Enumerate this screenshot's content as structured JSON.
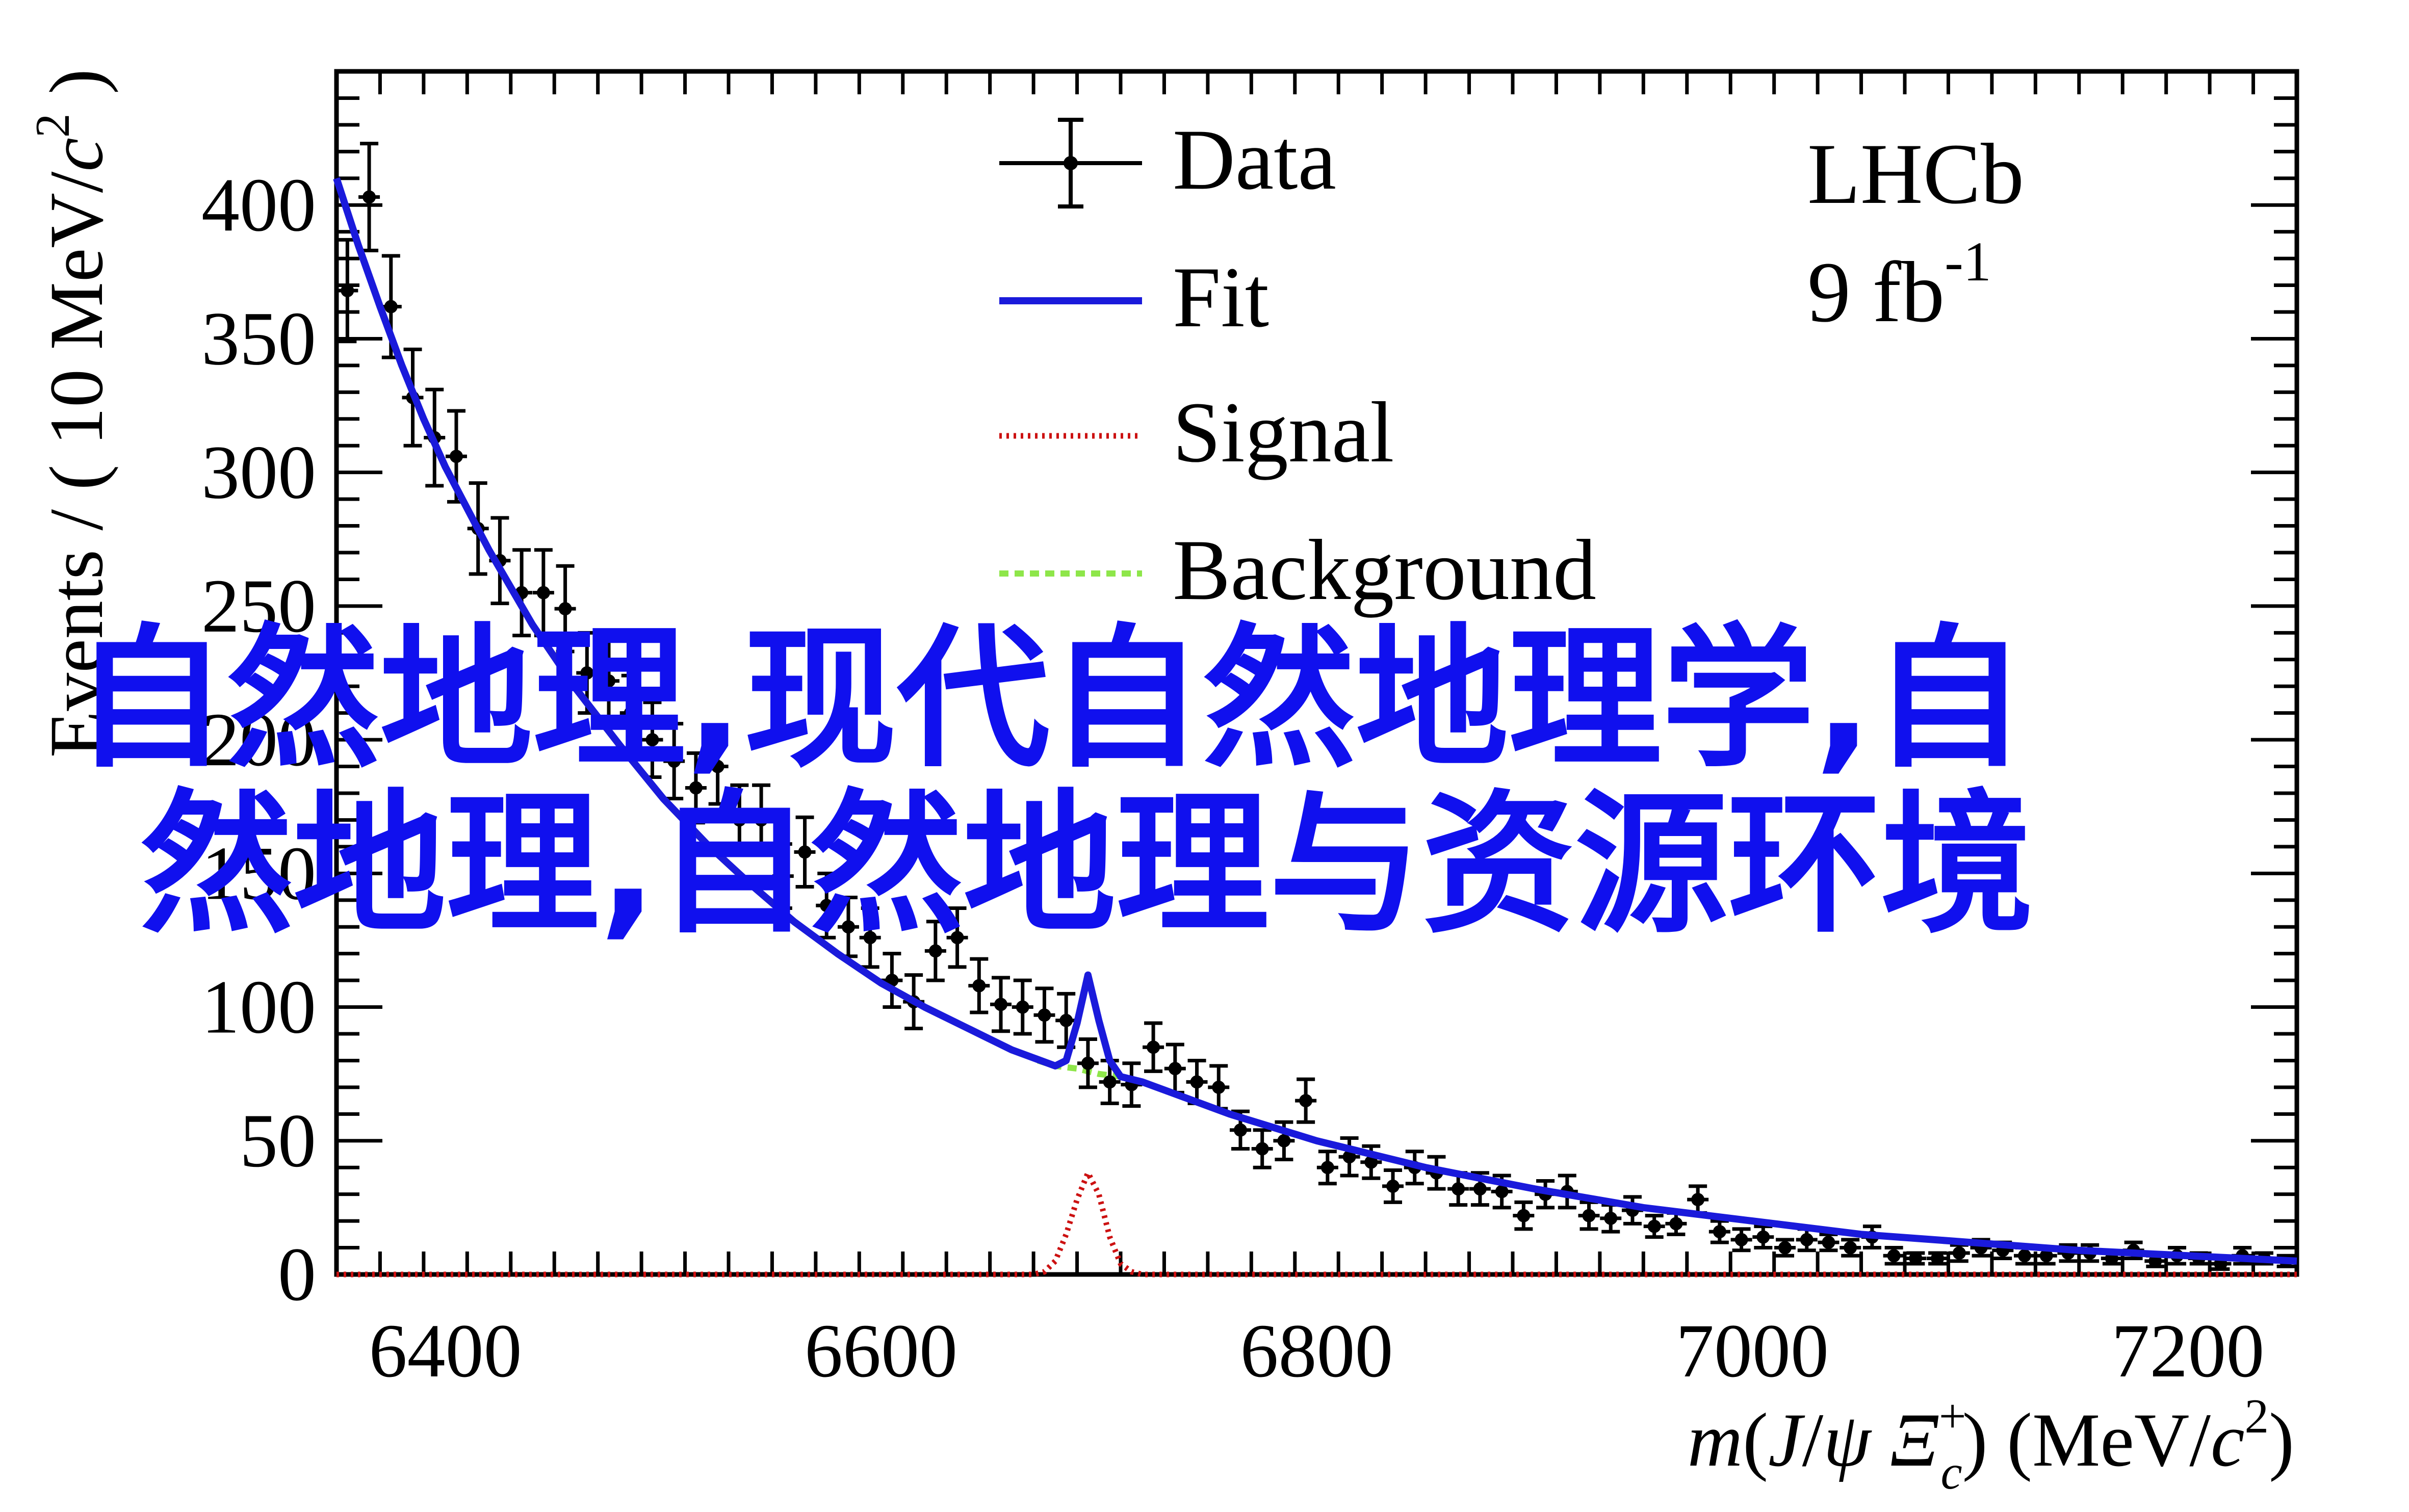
{
  "chart_data": {
    "type": "scatter",
    "xlabel": "m(J/ψ Ξc+) (MeV/c²)",
    "ylabel": "Events / ( 10 MeV/c² )",
    "xlim": [
      6350,
      7250
    ],
    "ylim": [
      0,
      450
    ],
    "x_ticks": [
      6400,
      6600,
      6800,
      7000,
      7200
    ],
    "y_ticks": [
      0,
      50,
      100,
      150,
      200,
      250,
      300,
      350,
      400
    ],
    "grid": false,
    "legend_placement": "top-center",
    "legend": [
      "Data",
      "Fit",
      "Signal",
      "Background"
    ],
    "annotations": [
      "LHCb",
      "9 fb-1"
    ],
    "series": [
      {
        "name": "Data",
        "kind": "points-with-errorbars",
        "color": "#000000",
        "x": [
          6355,
          6365,
          6375,
          6385,
          6395,
          6405,
          6415,
          6425,
          6435,
          6445,
          6455,
          6465,
          6475,
          6485,
          6495,
          6505,
          6515,
          6525,
          6535,
          6545,
          6555,
          6565,
          6575,
          6585,
          6595,
          6605,
          6615,
          6625,
          6635,
          6645,
          6655,
          6665,
          6675,
          6685,
          6695,
          6705,
          6715,
          6725,
          6735,
          6745,
          6755,
          6765,
          6775,
          6785,
          6795,
          6805,
          6815,
          6825,
          6835,
          6845,
          6855,
          6865,
          6875,
          6885,
          6895,
          6905,
          6915,
          6925,
          6935,
          6945,
          6955,
          6965,
          6975,
          6985,
          6995,
          7005,
          7015,
          7025,
          7035,
          7045,
          7055,
          7065,
          7075,
          7085,
          7095,
          7105,
          7115,
          7125,
          7135,
          7145,
          7155,
          7165,
          7175,
          7185,
          7195,
          7205,
          7215,
          7225,
          7235,
          7245
        ],
        "y": [
          368,
          403,
          362,
          328,
          313,
          306,
          279,
          267,
          255,
          255,
          249,
          225,
          222,
          210,
          200,
          192,
          182,
          190,
          170,
          170,
          149,
          158,
          138,
          130,
          126,
          110,
          102,
          121,
          126,
          108,
          101,
          100,
          97,
          95,
          79,
          72,
          71,
          85,
          77,
          72,
          70,
          54,
          47,
          50,
          65,
          40,
          44,
          42,
          33,
          40,
          38,
          32,
          32,
          31,
          22,
          30,
          31,
          22,
          21,
          24,
          18,
          19,
          28,
          16,
          13,
          14,
          10,
          13,
          12,
          10,
          14,
          7,
          6,
          6,
          8,
          10,
          9,
          7,
          7,
          8,
          8,
          6,
          9,
          5,
          7,
          6,
          4,
          7,
          6,
          5
        ],
        "yerr": [
          19,
          20,
          19,
          18,
          18,
          17,
          17,
          16,
          16,
          16,
          16,
          15,
          15,
          14,
          14,
          14,
          13,
          14,
          13,
          13,
          12,
          13,
          12,
          11,
          11,
          10,
          10,
          11,
          11,
          10,
          10,
          10,
          10,
          10,
          9,
          8,
          8,
          9,
          9,
          8,
          8,
          7,
          7,
          7,
          8,
          6,
          7,
          6,
          6,
          6,
          6,
          6,
          6,
          6,
          5,
          5,
          6,
          5,
          5,
          5,
          4,
          4,
          5,
          4,
          4,
          4,
          3,
          4,
          3,
          3,
          4,
          3,
          2,
          2,
          3,
          3,
          3,
          3,
          3,
          3,
          3,
          2,
          3,
          2,
          3,
          2,
          2,
          3,
          2,
          2
        ]
      },
      {
        "name": "Fit",
        "kind": "line",
        "color": "#1a1adb",
        "x": [
          6350,
          6360,
          6370,
          6380,
          6390,
          6400,
          6420,
          6440,
          6460,
          6480,
          6500,
          6520,
          6540,
          6560,
          6580,
          6600,
          6620,
          6640,
          6660,
          6670,
          6680,
          6685,
          6690,
          6695,
          6700,
          6705,
          6710,
          6720,
          6740,
          6760,
          6780,
          6800,
          6850,
          6900,
          6950,
          7000,
          7050,
          7100,
          7150,
          7200,
          7250
        ],
        "y": [
          410,
          385,
          362,
          340,
          320,
          302,
          271,
          243,
          219,
          198,
          178,
          161,
          146,
          132,
          120,
          109,
          100,
          92,
          84,
          81,
          78,
          80,
          94,
          112,
          95,
          80,
          74,
          72,
          66,
          60,
          55,
          50,
          40,
          32,
          25,
          20,
          15,
          12,
          9,
          7,
          5
        ]
      },
      {
        "name": "Signal",
        "kind": "dotted-line",
        "color": "#cc1111",
        "x": [
          6350,
          6600,
          6670,
          6675,
          6680,
          6685,
          6690,
          6695,
          6700,
          6705,
          6710,
          6715,
          6720,
          7250
        ],
        "y": [
          0,
          0,
          0,
          1,
          5,
          15,
          28,
          38,
          30,
          14,
          4,
          1,
          0,
          0
        ]
      },
      {
        "name": "Background",
        "kind": "dashed-line",
        "color": "#8ee64a",
        "x": [
          6672,
          6680,
          6690,
          6700,
          6710
        ],
        "y": [
          80,
          78,
          77,
          75,
          74
        ]
      }
    ]
  },
  "watermark": {
    "line1": "自然地理,现代自然地理学,自",
    "line2": "然地理,自然地理与资源环境",
    "color": "#1010ee"
  }
}
